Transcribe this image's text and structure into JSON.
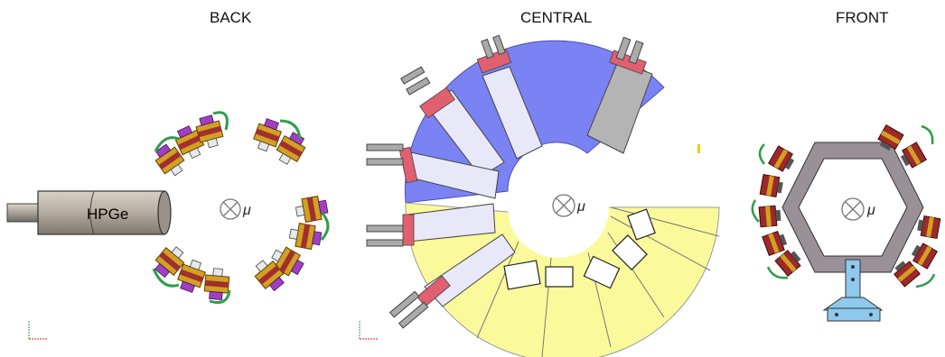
{
  "panels": {
    "back": {
      "title": "BACK",
      "detector_label": "HPGe",
      "beam_symbol": "μ"
    },
    "central": {
      "title": "CENTRAL",
      "beam_symbol": "μ"
    },
    "front": {
      "title": "FRONT",
      "beam_symbol": "μ"
    }
  },
  "colors": {
    "scintillator_blue": "#7b82f4",
    "scintillator_yellow": "#fafa9c",
    "light_guide": "#e8e8f8",
    "red_band": "#e06070",
    "gray_detector": "#b4b4b4",
    "frame_gray": "#9a9098",
    "bracket_blue": "#8ec9ee",
    "module_gold": "#d4a020",
    "module_red": "#a03030",
    "module_purple": "#a040c0",
    "cable_green": "#2e9e4a",
    "hpge_gray": "#b8b0a4"
  },
  "icons": [
    "beam-direction-icon",
    "axis-triad-icon"
  ]
}
